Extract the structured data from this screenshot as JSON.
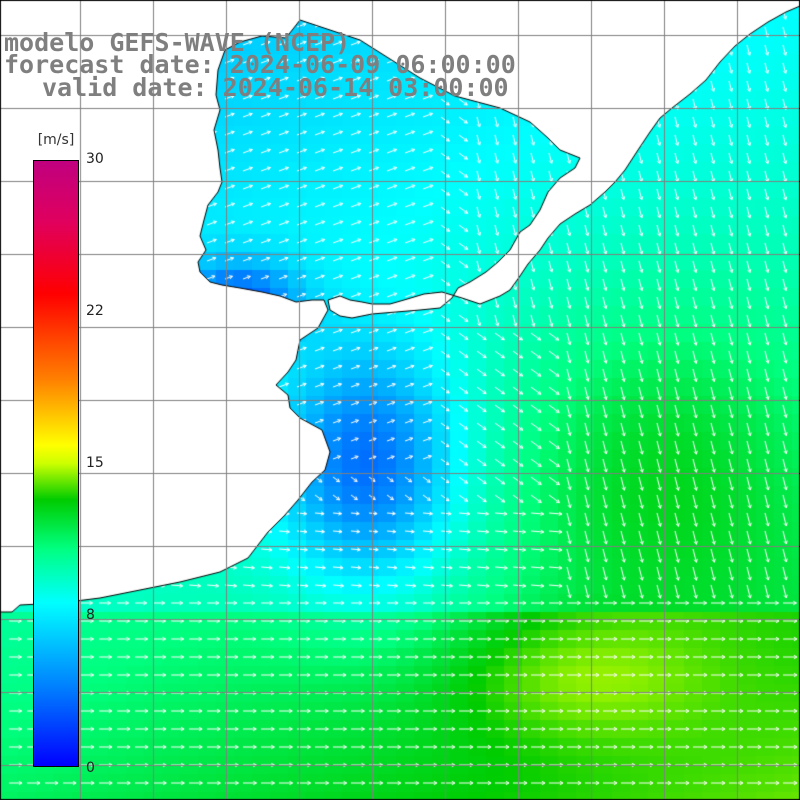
{
  "title": {
    "line1": "modelo GEFS-WAVE (NCEP)",
    "line2": "forecast date: 2024-06-09 06:00:00",
    "line3": "valid date: 2024-06-14 03:00:00"
  },
  "colorbar": {
    "unit": "[m/s]",
    "ticks": [
      "30",
      "22",
      "15",
      "8",
      "0"
    ],
    "colors": [
      "#0000ff",
      "#007fff",
      "#00ffff",
      "#00ff7f",
      "#00cc00",
      "#ccff00",
      "#ffff00",
      "#ff7f00",
      "#ff0000",
      "#e0005e",
      "#c0007f"
    ]
  },
  "colors": {
    "land": "#ffffff",
    "coastline": "#000000",
    "grid": "#808080",
    "arrows": "#ffffff",
    "title_text": "#7f7f7f"
  }
}
